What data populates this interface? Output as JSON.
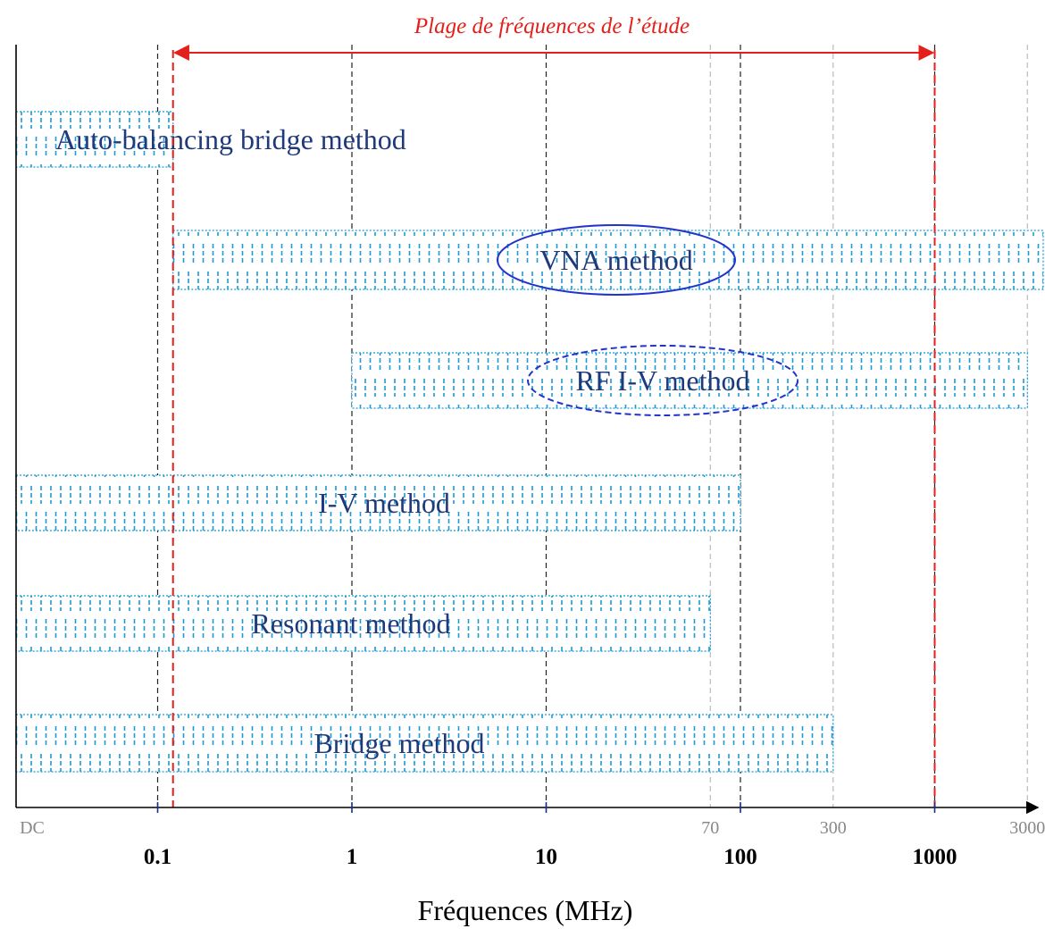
{
  "chart_data": {
    "type": "bar",
    "title": "Plage de fréquences de l’étude",
    "xlabel": "Fréquences (MHz)",
    "ylabel": "",
    "xscale": "log",
    "xlim": [
      0.01,
      5000
    ],
    "major_ticks": [
      {
        "value": 0.1,
        "label": "0.1"
      },
      {
        "value": 1,
        "label": "1"
      },
      {
        "value": 10,
        "label": "10"
      },
      {
        "value": 100,
        "label": "100"
      },
      {
        "value": 1000,
        "label": "1000"
      }
    ],
    "minor_ticks": [
      {
        "value": 0.01,
        "label": "DC"
      },
      {
        "value": 70,
        "label": "70"
      },
      {
        "value": 300,
        "label": "300"
      },
      {
        "value": 3000,
        "label": "3000"
      }
    ],
    "study_range": [
      0.12,
      1000
    ],
    "series": [
      {
        "name": "Auto-balancing bridge method",
        "start": 0.015,
        "end": 0.12
      },
      {
        "name": "VNA method",
        "start": 0.12,
        "end": 5000,
        "highlight": "solid-ellipse"
      },
      {
        "name": "RF I-V method",
        "start": 1,
        "end": 3000,
        "highlight": "dashed-ellipse"
      },
      {
        "name": "I-V method",
        "start": 0.0125,
        "end": 100
      },
      {
        "name": "Resonant method",
        "start": 0.0125,
        "end": 70
      },
      {
        "name": "Bridge method",
        "start": 0.01,
        "end": 300
      }
    ],
    "colors": {
      "bar_pattern": "#1a9ad6",
      "bar_text": "#1f3a7a",
      "study_range": "#e3201b",
      "ellipse": "#2233cc",
      "axis": "#000000",
      "major_gridline": "#222222",
      "minor_gridline": "#bbbbbb",
      "minor_label": "#888888"
    }
  }
}
